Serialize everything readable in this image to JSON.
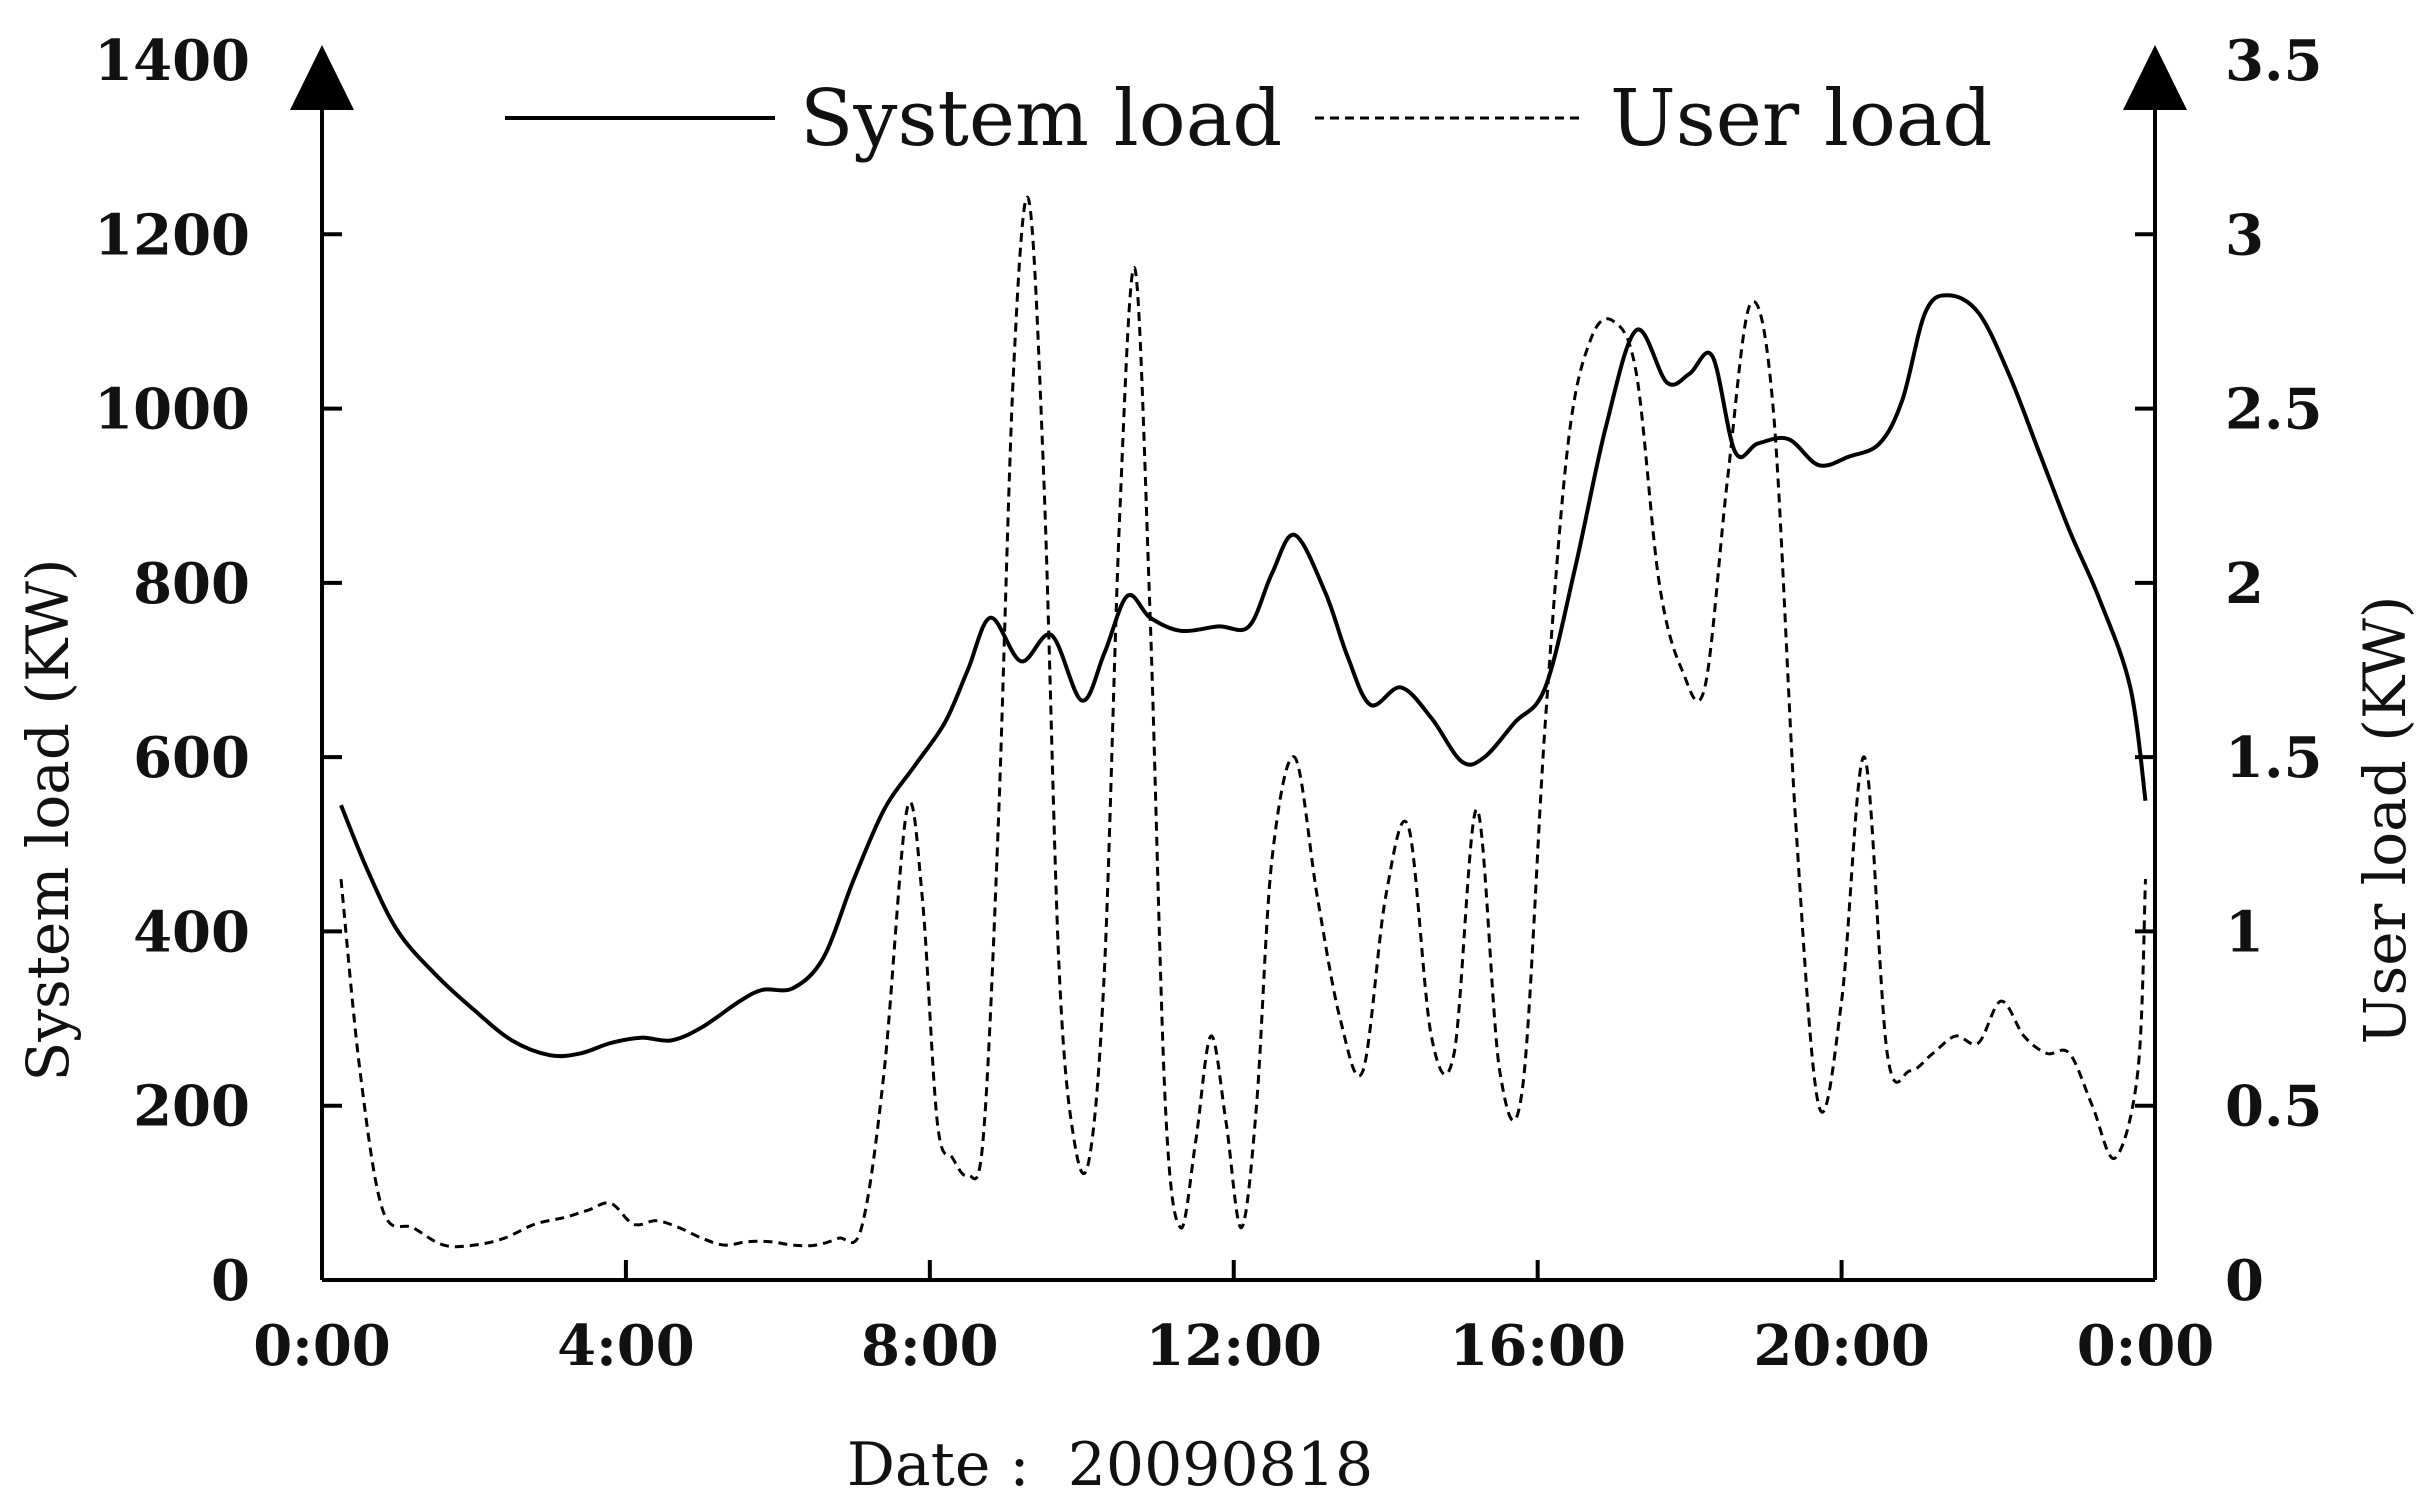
{
  "chart_data": {
    "type": "line",
    "xlabel": "Date :  20090818",
    "ylabel": "System load (KW)",
    "y2label": "User load (KW)",
    "x_ticks": [
      "0:00",
      "4:00",
      "8:00",
      "12:00",
      "16:00",
      "20:00",
      "0:00"
    ],
    "x_range_hours": [
      0,
      24
    ],
    "ylim": [
      0,
      1400
    ],
    "y_ticks": [
      "0",
      "200",
      "400",
      "600",
      "800",
      "1000",
      "1200",
      "1400"
    ],
    "y2lim": [
      0,
      3.5
    ],
    "y2_ticks": [
      "0",
      "0.5",
      "1",
      "1.5",
      "2",
      "2.5",
      "3",
      "3.5"
    ],
    "legend_position": "top",
    "grid": false,
    "series": [
      {
        "name": "System load",
        "axis": "left",
        "style": "solid",
        "x": [
          0.25,
          0.6,
          1.0,
          1.5,
          2.0,
          2.5,
          3.0,
          3.4,
          3.8,
          4.2,
          4.6,
          5.0,
          5.5,
          5.8,
          6.2,
          6.6,
          7.0,
          7.4,
          7.8,
          8.2,
          8.5,
          8.8,
          9.2,
          9.6,
          10.0,
          10.3,
          10.6,
          10.9,
          11.3,
          11.8,
          12.2,
          12.5,
          12.8,
          13.2,
          13.5,
          13.8,
          14.2,
          14.6,
          15.0,
          15.3,
          15.7,
          16.1,
          16.5,
          16.9,
          17.3,
          17.7,
          18.0,
          18.3,
          18.6,
          18.9,
          19.3,
          19.7,
          20.1,
          20.5,
          20.8,
          21.1,
          21.4,
          21.8,
          22.2,
          22.6,
          23.0,
          23.4,
          23.8,
          24.0
        ],
        "y": [
          545,
          470,
          400,
          350,
          310,
          275,
          258,
          260,
          272,
          278,
          275,
          290,
          320,
          333,
          335,
          370,
          460,
          540,
          590,
          640,
          700,
          760,
          710,
          740,
          665,
          720,
          785,
          760,
          745,
          750,
          750,
          810,
          855,
          790,
          715,
          660,
          680,
          645,
          595,
          600,
          640,
          680,
          820,
          980,
          1090,
          1030,
          1040,
          1060,
          950,
          960,
          965,
          935,
          945,
          960,
          1010,
          1110,
          1130,
          1110,
          1040,
          950,
          860,
          780,
          680,
          550
        ]
      },
      {
        "name": "User load",
        "axis": "right",
        "style": "dashed",
        "x": [
          0.25,
          0.5,
          0.8,
          1.2,
          1.6,
          2.0,
          2.4,
          2.8,
          3.2,
          3.5,
          3.8,
          4.1,
          4.4,
          4.7,
          5.0,
          5.3,
          5.6,
          5.9,
          6.2,
          6.5,
          6.8,
          7.1,
          7.4,
          7.7,
          7.9,
          8.1,
          8.3,
          8.5,
          8.7,
          8.9,
          9.1,
          9.3,
          9.5,
          9.7,
          9.9,
          10.1,
          10.3,
          10.5,
          10.7,
          10.9,
          11.1,
          11.3,
          11.5,
          11.7,
          11.9,
          12.1,
          12.3,
          12.5,
          12.8,
          13.1,
          13.4,
          13.7,
          14.0,
          14.3,
          14.6,
          14.9,
          15.2,
          15.5,
          15.8,
          16.1,
          16.4,
          16.7,
          17.0,
          17.3,
          17.6,
          17.9,
          18.2,
          18.5,
          18.8,
          19.1,
          19.4,
          19.7,
          20.0,
          20.3,
          20.6,
          20.9,
          21.2,
          21.5,
          21.8,
          22.1,
          22.4,
          22.7,
          23.0,
          23.3,
          23.6,
          23.9,
          24.0
        ],
        "y": [
          1.15,
          0.6,
          0.2,
          0.15,
          0.1,
          0.1,
          0.12,
          0.16,
          0.18,
          0.2,
          0.22,
          0.16,
          0.17,
          0.15,
          0.12,
          0.1,
          0.11,
          0.11,
          0.1,
          0.1,
          0.12,
          0.15,
          0.6,
          1.35,
          1.1,
          0.45,
          0.35,
          0.3,
          0.4,
          1.3,
          2.6,
          3.1,
          2.3,
          0.9,
          0.4,
          0.35,
          0.9,
          2.2,
          2.9,
          1.9,
          0.5,
          0.15,
          0.4,
          0.7,
          0.45,
          0.15,
          0.5,
          1.2,
          1.5,
          1.1,
          0.75,
          0.6,
          1.1,
          1.3,
          0.7,
          0.65,
          1.35,
          0.6,
          0.55,
          1.6,
          2.4,
          2.7,
          2.75,
          2.6,
          2.0,
          1.75,
          1.7,
          2.3,
          2.8,
          2.5,
          1.3,
          0.5,
          0.8,
          1.5,
          0.65,
          0.6,
          0.65,
          0.7,
          0.68,
          0.8,
          0.7,
          0.65,
          0.65,
          0.5,
          0.35,
          0.6,
          1.15
        ]
      }
    ]
  }
}
